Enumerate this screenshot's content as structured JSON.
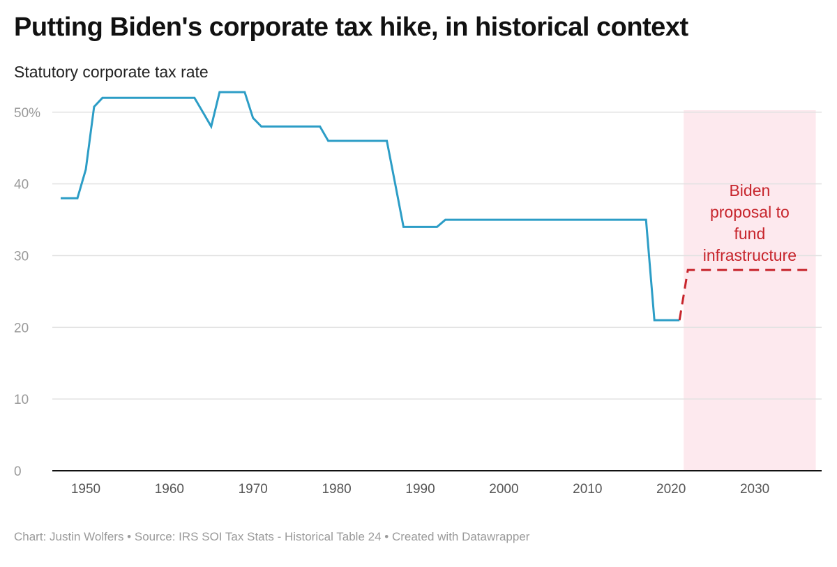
{
  "title": "Putting Biden's corporate tax hike, in historical context",
  "subtitle": "Statutory corporate tax rate",
  "footer": "Chart: Justin Wolfers • Source: IRS SOI Tax Stats - Historical Table 24 • Created with Datawrapper",
  "colors": {
    "historical": "#2c9dc6",
    "proposal": "#c7252c",
    "shade": "#fde9ee",
    "grid": "#e2e2e2",
    "axis": "#111111"
  },
  "chart_data": {
    "type": "line",
    "xlim": [
      1946,
      2038
    ],
    "ylim": [
      0,
      53
    ],
    "y_ticks": [
      0,
      10,
      20,
      30,
      40,
      50
    ],
    "y_tick_labels": [
      "0",
      "10",
      "20",
      "30",
      "40",
      "50%"
    ],
    "x_ticks": [
      1950,
      1960,
      1970,
      1980,
      1990,
      2000,
      2010,
      2020,
      2030
    ],
    "x_tick_labels": [
      "1950",
      "1960",
      "1970",
      "1980",
      "1990",
      "2000",
      "2010",
      "2020",
      "2030"
    ],
    "grid": true,
    "series": [
      {
        "style": "solid",
        "points": [
          [
            1947,
            38
          ],
          [
            1949,
            38
          ],
          [
            1950,
            42
          ],
          [
            1951,
            50.75
          ],
          [
            1952,
            52
          ],
          [
            1963,
            52
          ],
          [
            1964,
            50
          ],
          [
            1965,
            48
          ],
          [
            1966,
            52.8
          ],
          [
            1969,
            52.8
          ],
          [
            1970,
            49.2
          ],
          [
            1971,
            48
          ],
          [
            1978,
            48
          ],
          [
            1979,
            46
          ],
          [
            1986,
            46
          ],
          [
            1987,
            40
          ],
          [
            1988,
            34
          ],
          [
            1992,
            34
          ],
          [
            1993,
            35
          ],
          [
            2017,
            35
          ],
          [
            2018,
            21
          ],
          [
            2021,
            21
          ]
        ]
      },
      {
        "style": "dashed",
        "points": [
          [
            2021,
            21
          ],
          [
            2022,
            28
          ],
          [
            2037,
            28
          ]
        ]
      }
    ],
    "highlight": {
      "x_range": [
        2021.5,
        2037.3
      ],
      "label": [
        "Biden",
        "proposal to",
        "fund",
        "infrastructure"
      ]
    }
  }
}
